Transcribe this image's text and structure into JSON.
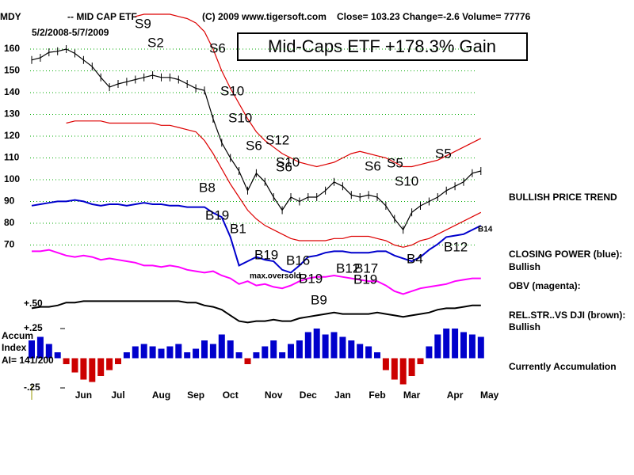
{
  "header": {
    "symbol": "MDY",
    "name": "-- MID CAP ETF",
    "copyright": "(C) 2009 www.tigersoft.com",
    "quote": "Close=  103.23  Change=-2.6 Volume=  77776",
    "dates": "5/2/2008-5/7/2009",
    "gain_box": "Mid-Caps ETF  +178.3% Gain"
  },
  "signals": [
    "S9",
    "S2",
    "S6",
    "S10",
    "S10",
    "S6",
    "S12",
    "S10",
    "S6",
    "S6",
    "S5",
    "S10",
    "S5",
    "B8",
    "B19",
    "B1",
    "B19",
    "B16",
    "B19",
    "B9",
    "B12",
    "B17",
    "B19",
    "B4",
    "B12",
    "B14"
  ],
  "annotation": "max.oversold",
  "side_labels": [
    "BULLISH PRICE TREND",
    "CLOSING POWER (blue):",
    "Bullish",
    "OBV (magenta):",
    "REL.STR..VS DJI (brown):",
    "Bullish",
    "Currently Accumulation"
  ],
  "left_labels": [
    "Accum",
    "Index",
    "AI= 141/200",
    "+.50"
  ],
  "chart_data": [
    {
      "type": "line",
      "categories": [
        null,
        null,
        null,
        null,
        null,
        null,
        "Jun",
        null,
        null,
        null,
        "Jul",
        null,
        null,
        null,
        null,
        "Aug",
        null,
        null,
        null,
        "Sep",
        null,
        null,
        null,
        "Oct",
        null,
        null,
        null,
        null,
        "Nov",
        null,
        null,
        null,
        "Dec",
        null,
        null,
        null,
        "Jan",
        null,
        null,
        null,
        "Feb",
        null,
        null,
        null,
        "Mar",
        null,
        null,
        null,
        null,
        "Apr",
        null,
        null,
        null,
        "May"
      ],
      "ylim": [
        66,
        182
      ],
      "yticks": [
        70,
        80,
        90,
        100,
        110,
        120,
        130,
        140,
        150,
        160
      ],
      "grid": true,
      "series": [
        {
          "color": "#000000",
          "values": [
            155,
            156,
            158.5,
            159,
            160,
            158,
            155,
            152,
            147,
            142.5,
            144,
            145,
            146,
            147,
            148,
            147,
            147,
            146,
            144,
            142,
            141,
            128,
            117,
            110,
            104,
            95,
            103,
            99,
            92,
            86,
            92,
            90,
            92,
            92,
            95,
            99,
            97,
            93,
            92,
            93,
            92,
            88,
            82,
            77,
            85,
            88,
            90,
            92,
            95,
            97,
            99,
            103,
            104,
            null
          ]
        },
        {
          "color": "#dd0000",
          "values": [
            null,
            null,
            null,
            null,
            null,
            null,
            null,
            null,
            null,
            null,
            null,
            null,
            175,
            176,
            176,
            176,
            176,
            175,
            174,
            172,
            168,
            160,
            150,
            142,
            135,
            128,
            122,
            118,
            115,
            112,
            110,
            108,
            107,
            106,
            107,
            108,
            110,
            112,
            113,
            112,
            111,
            110,
            108,
            106,
            106,
            107,
            108,
            109,
            111,
            113,
            115,
            117,
            119,
            null
          ]
        },
        {
          "color": "#dd0000",
          "values": [
            null,
            null,
            null,
            null,
            126,
            127,
            127,
            127,
            127,
            126,
            126,
            126,
            126,
            126,
            126,
            125,
            125,
            124,
            123,
            122,
            118,
            112,
            105,
            98,
            92,
            86,
            82,
            79,
            77,
            75,
            73,
            72,
            72,
            72,
            72,
            73,
            73,
            74,
            74,
            74,
            73,
            72,
            70,
            69,
            70,
            72,
            73,
            75,
            77,
            79,
            81,
            83,
            85,
            null
          ]
        }
      ]
    },
    {
      "type": "line",
      "ylim": [
        0,
        100
      ],
      "series": [
        {
          "name": "CLOSING POWER (blue):",
          "color": "#0000cc",
          "values": [
            89,
            90,
            91,
            92,
            92,
            93,
            92,
            90,
            89,
            90,
            90,
            89,
            90,
            91,
            90,
            90,
            89,
            89,
            88,
            88,
            88,
            84,
            81,
            67,
            47,
            50,
            53,
            51,
            50,
            44,
            42,
            47,
            53,
            54,
            56,
            57,
            57,
            56,
            56,
            56,
            57,
            57,
            54,
            52,
            50,
            53,
            58,
            62,
            67,
            68,
            69,
            72,
            75,
            null
          ]
        },
        {
          "name": "OBV (magenta):",
          "color": "#ff00ff",
          "values": [
            57,
            57,
            58,
            56,
            54,
            53,
            54,
            53,
            51,
            52,
            51,
            50,
            49,
            47,
            47,
            46,
            47,
            46,
            44,
            43,
            42,
            43,
            40,
            38,
            34,
            36,
            33,
            34,
            32,
            31,
            33,
            36,
            38,
            39,
            39,
            40,
            39,
            38,
            37,
            36,
            36,
            33,
            29,
            27,
            29,
            31,
            32,
            33,
            34,
            36,
            37,
            38,
            38,
            null
          ]
        },
        {
          "name": "REL.STR..VS DJI (brown):",
          "color": "#000000",
          "values": [
            17,
            18,
            18,
            19,
            21,
            21,
            22,
            22,
            22,
            22,
            22,
            22,
            22,
            22,
            22,
            22,
            22,
            22,
            21,
            21,
            19,
            18,
            16,
            12,
            8,
            7,
            8,
            8,
            9,
            8,
            8,
            10,
            11,
            12,
            13,
            14,
            13,
            13,
            13,
            13,
            14,
            13,
            12,
            11,
            12,
            13,
            14,
            16,
            17,
            17,
            18,
            19,
            19,
            null
          ]
        }
      ]
    },
    {
      "type": "bar",
      "ylim": [
        -0.35,
        0.35
      ],
      "yticks": [
        {
          "value": 0.25,
          "label": "+.25"
        },
        {
          "value": -0.25,
          "label": "-.25"
        }
      ],
      "colors": {
        "positive": "#0000cc",
        "negative": "#cc0000"
      },
      "values": [
        0.15,
        0.18,
        0.12,
        0.05,
        -0.05,
        -0.12,
        -0.18,
        -0.2,
        -0.15,
        -0.1,
        -0.05,
        0.05,
        0.1,
        0.12,
        0.1,
        0.08,
        0.1,
        0.12,
        0.05,
        0.08,
        0.15,
        0.12,
        0.2,
        0.15,
        0.05,
        -0.05,
        0.05,
        0.1,
        0.15,
        0.05,
        0.12,
        0.15,
        0.22,
        0.25,
        0.2,
        0.22,
        0.18,
        0.15,
        0.12,
        0.1,
        0.05,
        -0.1,
        -0.18,
        -0.22,
        -0.15,
        -0.05,
        0.1,
        0.2,
        0.25,
        0.25,
        0.22,
        0.2,
        0.18,
        null
      ]
    }
  ]
}
